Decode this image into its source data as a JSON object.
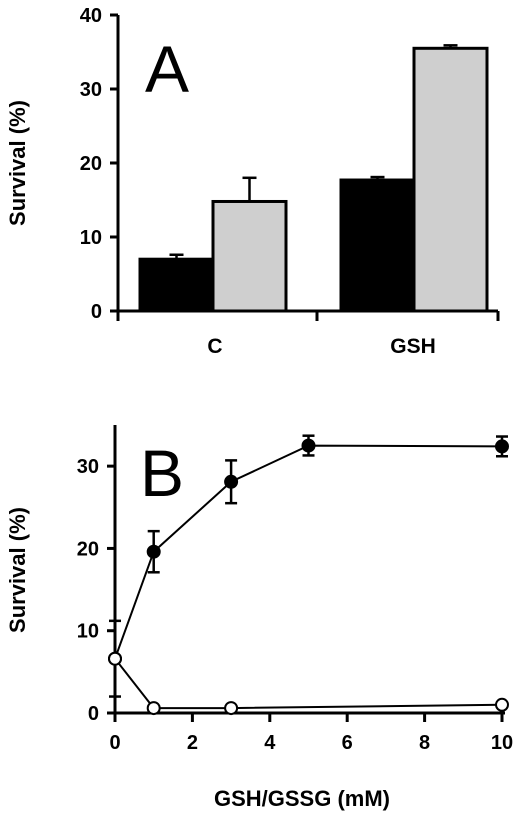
{
  "chart_data": [
    {
      "type": "bar",
      "panel_label": "A",
      "ylabel": "Survival (%)",
      "xlabel": "",
      "ylim": [
        0,
        40
      ],
      "yticks": [
        "0",
        "10",
        "20",
        "30",
        "40"
      ],
      "categories": [
        "C",
        "GSH"
      ],
      "series": [
        {
          "color": "#000000",
          "values": [
            7,
            17.7
          ],
          "errors": [
            0.6,
            0.4
          ]
        },
        {
          "color": "#cfcfcf",
          "values": [
            14.8,
            35.5
          ],
          "errors": [
            3.2,
            0.4
          ]
        }
      ]
    },
    {
      "type": "line",
      "panel_label": "B",
      "ylabel": "Survival (%)",
      "xlabel": "GSH/GSSG (mM)",
      "xlim": [
        0,
        10
      ],
      "ylim": [
        0,
        35
      ],
      "xticks": [
        "0",
        "2",
        "4",
        "6",
        "8",
        "10"
      ],
      "yticks": [
        "0",
        "10",
        "20",
        "30"
      ],
      "series": [
        {
          "marker": "filled-circle",
          "x": [
            0,
            1,
            3,
            5,
            10
          ],
          "y": [
            6.6,
            19.6,
            28.1,
            32.5,
            32.4
          ],
          "errors": [
            4.6,
            2.5,
            2.6,
            1.2,
            1.2
          ]
        },
        {
          "marker": "open-circle",
          "x": [
            0,
            1,
            3,
            10
          ],
          "y": [
            6.6,
            0.6,
            0.6,
            1.0
          ],
          "errors": [
            0,
            0,
            0,
            0
          ]
        }
      ]
    }
  ]
}
